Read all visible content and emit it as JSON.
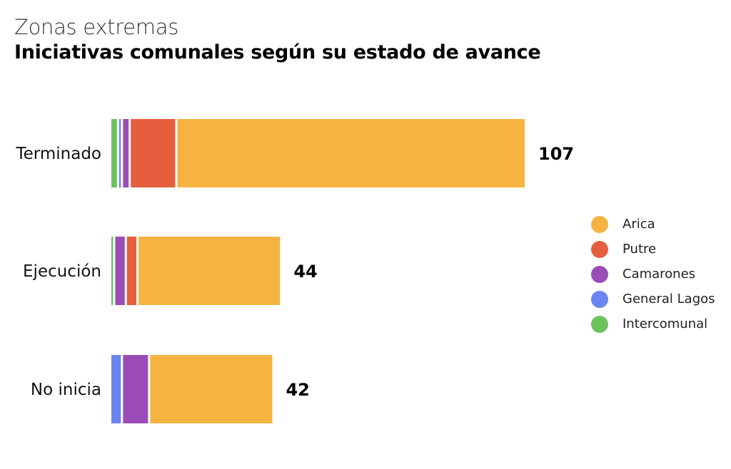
{
  "header": {
    "subtitle": "Zonas extremas",
    "title": "Iniciativas comunales según su estado de avance"
  },
  "colors": {
    "Arica": "#F5B342",
    "Putre": "#E55F3F",
    "Camarones": "#9B4DB7",
    "General Lagos": "#6A84F0",
    "Intercomunal": "#6CC35E"
  },
  "chart_data": {
    "type": "bar",
    "orientation": "horizontal",
    "stacked": true,
    "title": "Iniciativas comunales según su estado de avance",
    "subtitle": "Zonas extremas",
    "categories": [
      "Terminado",
      "Ejecución",
      "No inicia"
    ],
    "totals": [
      107,
      44,
      42
    ],
    "series": [
      {
        "name": "Intercomunal",
        "values": [
          2,
          1,
          0
        ]
      },
      {
        "name": "General Lagos",
        "values": [
          1,
          0,
          3
        ]
      },
      {
        "name": "Camarones",
        "values": [
          2,
          3,
          7
        ]
      },
      {
        "name": "Putre",
        "values": [
          12,
          3,
          0
        ]
      },
      {
        "name": "Arica",
        "values": [
          90,
          37,
          32
        ]
      }
    ],
    "xlim": [
      0,
      107
    ],
    "grid": false,
    "legend_position": "right",
    "legend_order": [
      "Arica",
      "Putre",
      "Camarones",
      "General Lagos",
      "Intercomunal"
    ]
  }
}
